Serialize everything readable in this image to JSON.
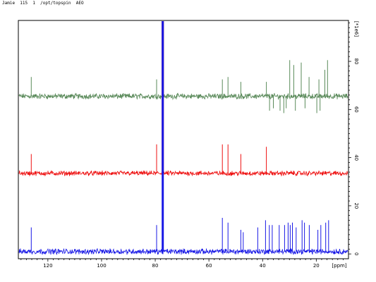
{
  "header": {
    "text": "Jamie  115  1  /opt/topspin  AEO"
  },
  "chart_data": {
    "type": "line",
    "title": "",
    "xlabel": "[ppm]",
    "ylabel": "[*1e6]",
    "xlim": [
      131,
      8
    ],
    "ylim": [
      -2,
      97
    ],
    "x_reversed": true,
    "x_ticks": [
      120,
      100,
      80,
      60,
      40,
      20
    ],
    "y_ticks": [
      0,
      20,
      40,
      60,
      80
    ],
    "grid": false,
    "legend": "none",
    "series": [
      {
        "color": "#5a8a5a",
        "baseline": 65.5,
        "noise": 0.9,
        "peaks": [
          {
            "x": 126.2,
            "y": 8
          },
          {
            "x": 79.5,
            "y": 7
          },
          {
            "x": 77.2,
            "y": 31.5
          },
          {
            "x": 55.0,
            "y": 7
          },
          {
            "x": 52.9,
            "y": 8
          },
          {
            "x": 48.1,
            "y": 6
          },
          {
            "x": 38.6,
            "y": 6
          },
          {
            "x": 29.9,
            "y": 15
          },
          {
            "x": 28.4,
            "y": 13
          },
          {
            "x": 25.6,
            "y": 14
          },
          {
            "x": 22.7,
            "y": 8
          },
          {
            "x": 19.0,
            "y": 7
          },
          {
            "x": 16.8,
            "y": 11
          },
          {
            "x": 15.8,
            "y": 15
          },
          {
            "x": 37.4,
            "y": -6
          },
          {
            "x": 36.0,
            "y": -5
          },
          {
            "x": 33.5,
            "y": -6
          },
          {
            "x": 32.1,
            "y": -7
          },
          {
            "x": 31.2,
            "y": -5
          },
          {
            "x": 27.8,
            "y": -6
          },
          {
            "x": 24.2,
            "y": -5
          },
          {
            "x": 19.8,
            "y": -7
          },
          {
            "x": 18.6,
            "y": -6
          }
        ]
      },
      {
        "color": "#ee1111",
        "baseline": 33.5,
        "noise": 0.8,
        "peaks": [
          {
            "x": 126.2,
            "y": 8
          },
          {
            "x": 79.5,
            "y": 12
          },
          {
            "x": 77.2,
            "y": 63.5
          },
          {
            "x": 55.0,
            "y": 12
          },
          {
            "x": 52.9,
            "y": 12
          },
          {
            "x": 48.1,
            "y": 8
          },
          {
            "x": 38.6,
            "y": 11
          }
        ]
      },
      {
        "color": "#1818e6",
        "baseline": 1.0,
        "noise": 0.9,
        "peaks": [
          {
            "x": 126.2,
            "y": 10
          },
          {
            "x": 79.5,
            "y": 11
          },
          {
            "x": 77.2,
            "y": 96
          },
          {
            "x": 55.0,
            "y": 14
          },
          {
            "x": 52.9,
            "y": 12
          },
          {
            "x": 48.1,
            "y": 9
          },
          {
            "x": 47.2,
            "y": 8
          },
          {
            "x": 41.8,
            "y": 10
          },
          {
            "x": 38.9,
            "y": 13
          },
          {
            "x": 37.5,
            "y": 11
          },
          {
            "x": 36.4,
            "y": 11
          },
          {
            "x": 33.8,
            "y": 11
          },
          {
            "x": 31.8,
            "y": 11
          },
          {
            "x": 30.5,
            "y": 12
          },
          {
            "x": 29.7,
            "y": 11
          },
          {
            "x": 28.9,
            "y": 12
          },
          {
            "x": 27.5,
            "y": 10
          },
          {
            "x": 25.3,
            "y": 13
          },
          {
            "x": 24.4,
            "y": 12
          },
          {
            "x": 22.6,
            "y": 11
          },
          {
            "x": 19.4,
            "y": 9
          },
          {
            "x": 18.3,
            "y": 11
          },
          {
            "x": 16.5,
            "y": 12
          },
          {
            "x": 15.4,
            "y": 13
          }
        ]
      }
    ]
  }
}
